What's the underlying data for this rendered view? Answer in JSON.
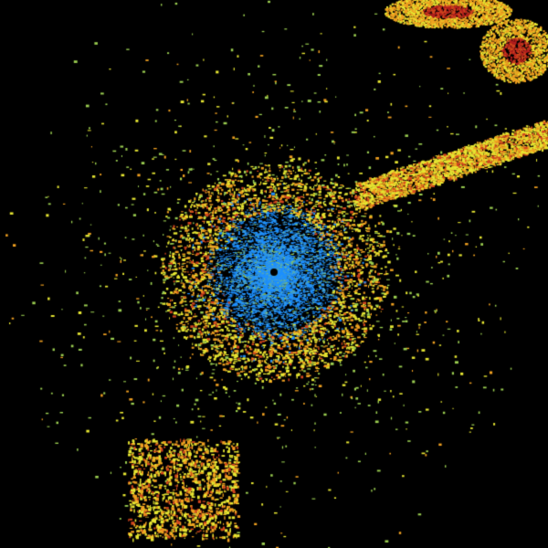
{
  "image": {
    "kind": "weather radar reflectivity sweep",
    "background_color": "#000000",
    "palette": {
      "light": "#1e90ff",
      "light_moderate": "#4aa3c8",
      "moderate": "#9acd50",
      "moderate_high": "#e6e632",
      "high": "#f0a020",
      "very_high": "#d2461e",
      "extreme": "#b41e1e"
    },
    "radar_site_marker_color": "#000000"
  }
}
